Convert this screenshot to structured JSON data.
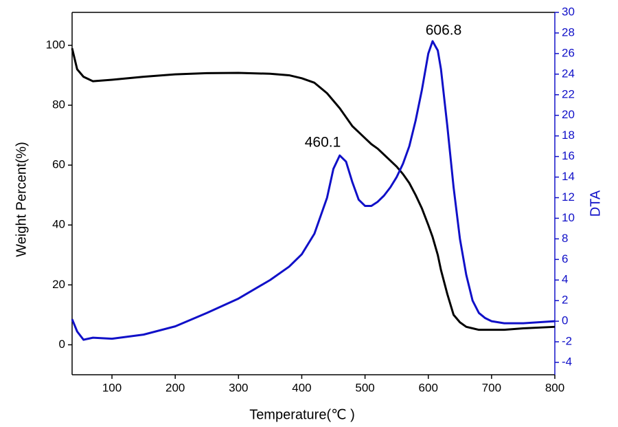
{
  "chart_data": {
    "type": "line",
    "x_label": "Temperature(℃ )",
    "y_label": "Weight Percent(%)",
    "y2_label": "DTA",
    "annotations": [
      "460.1",
      "606.8"
    ],
    "x": [
      37,
      45,
      55,
      70,
      100,
      150,
      200,
      250,
      300,
      350,
      380,
      400,
      420,
      440,
      450,
      460,
      470,
      480,
      490,
      500,
      510,
      520,
      530,
      540,
      550,
      560,
      570,
      580,
      590,
      600,
      606.8,
      615,
      620,
      630,
      640,
      650,
      660,
      670,
      680,
      690,
      700,
      720,
      750,
      800
    ],
    "series": [
      {
        "name": "Weight Percent",
        "color": "#000000",
        "axis": "y",
        "values": [
          99,
          92,
          89.5,
          88,
          88.5,
          89.5,
          90.3,
          90.7,
          90.8,
          90.5,
          90,
          89,
          87.5,
          84,
          81.5,
          79,
          76,
          73,
          71,
          69,
          67,
          65.5,
          63.5,
          61.5,
          59.5,
          57,
          54,
          50,
          45.5,
          40,
          36,
          30,
          25,
          17,
          10,
          7.5,
          6,
          5.5,
          5,
          5,
          5,
          5,
          5.5,
          6
        ]
      },
      {
        "name": "DTA",
        "color": "#1010c8",
        "axis": "y2",
        "values": [
          0.2,
          -1,
          -1.8,
          -1.6,
          -1.7,
          -1.3,
          -0.5,
          0.8,
          2.2,
          4,
          5.3,
          6.5,
          8.5,
          12,
          14.8,
          16.1,
          15.5,
          13.5,
          11.8,
          11.2,
          11.2,
          11.6,
          12.2,
          13,
          14,
          15.3,
          17,
          19.5,
          22.5,
          26,
          27.2,
          26.3,
          24.5,
          19,
          13,
          8,
          4.5,
          2,
          0.8,
          0.3,
          0,
          -0.2,
          -0.2,
          0
        ]
      }
    ],
    "xlim": [
      37,
      800
    ],
    "xticks": [
      100,
      200,
      300,
      400,
      500,
      600,
      700,
      800
    ],
    "ylim": [
      -10,
      111
    ],
    "yticks": [
      0,
      20,
      40,
      60,
      80,
      100
    ],
    "y2lim": [
      -5.2,
      30
    ],
    "y2ticks": [
      -4,
      -2,
      0,
      2,
      4,
      6,
      8,
      10,
      12,
      14,
      16,
      18,
      20,
      22,
      24,
      26,
      28,
      30
    ]
  }
}
